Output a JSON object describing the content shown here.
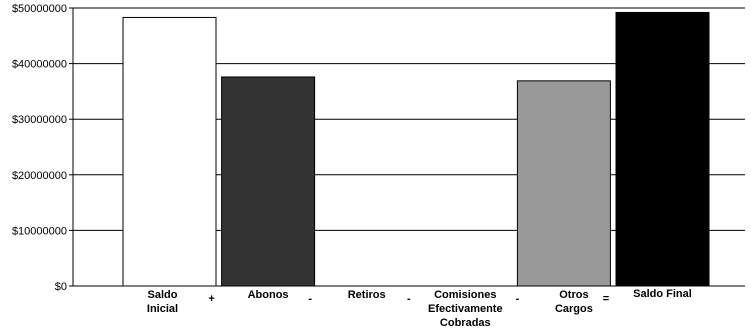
{
  "chart_data": {
    "type": "bar",
    "categories": [
      [
        "Saldo",
        "Inicial"
      ],
      [
        "Abonos"
      ],
      [
        "Retiros"
      ],
      [
        "Comisiones",
        "Efectivamente",
        "Cobradas"
      ],
      [
        "Otros",
        "Cargos"
      ],
      [
        "Saldo Final"
      ]
    ],
    "values": [
      48300000,
      37600000,
      0,
      0,
      36900000,
      49200000
    ],
    "bar_colors": [
      "#ffffff",
      "#333333",
      "#ffffff",
      "#ffffff",
      "#999999",
      "#000000"
    ],
    "operators": [
      "+",
      "-",
      "-",
      "-",
      "="
    ],
    "ylim": [
      0,
      50000000
    ],
    "yticks": [
      0,
      10000000,
      20000000,
      30000000,
      40000000,
      50000000
    ],
    "ytick_labels": [
      "$0",
      "$10000000",
      "$20000000",
      "$30000000",
      "$40000000",
      "$50000000"
    ],
    "grid": true,
    "legend": "none"
  }
}
